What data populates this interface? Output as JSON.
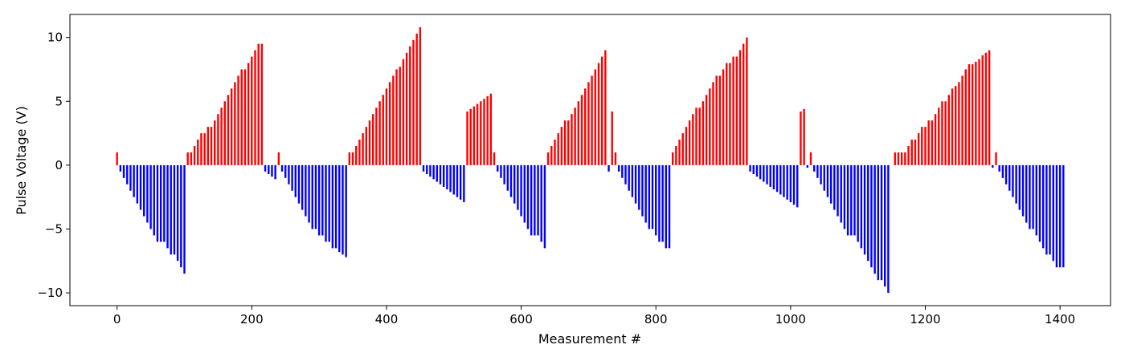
{
  "chart_data": {
    "type": "bar",
    "title": "",
    "xlabel": "Measurement #",
    "ylabel": "Pulse Voltage (V)",
    "xlim": [
      -70,
      1475
    ],
    "ylim": [
      -11.0,
      11.8
    ],
    "xticks": [
      0,
      200,
      400,
      600,
      800,
      1000,
      1200,
      1400
    ],
    "yticks": [
      -10,
      -5,
      0,
      5,
      10
    ],
    "xtick_labels": [
      "0",
      "200",
      "400",
      "600",
      "800",
      "1000",
      "1200",
      "1400"
    ],
    "ytick_labels": [
      "−10",
      "−5",
      "0",
      "5",
      "10"
    ],
    "grid": false,
    "legend": "none",
    "colors": {
      "positive": "#ff0000",
      "negative": "#0000ff",
      "axes": "#000000"
    },
    "series": [
      {
        "color": "#ff0000",
        "segments": [
          {
            "x_start": 0,
            "step": 5,
            "values": [
              1.0
            ]
          },
          {
            "x_start": 105,
            "step": 5,
            "values": [
              1.0,
              1.0,
              1.5,
              2.0,
              2.5,
              2.5,
              3.0,
              3.0,
              3.5,
              4.0,
              4.5,
              5.0,
              5.5,
              6.0,
              6.5,
              7.0,
              7.5,
              7.5,
              8.0,
              8.5,
              9.0,
              9.5,
              9.5
            ]
          },
          {
            "x_start": 240,
            "step": 5,
            "values": [
              1.0
            ]
          },
          {
            "x_start": 345,
            "step": 5,
            "values": [
              1.0,
              1.0,
              1.5,
              2.0,
              2.5,
              3.0,
              3.5,
              4.0,
              4.5,
              5.0,
              5.5,
              6.0,
              6.5,
              7.0,
              7.5,
              7.7,
              8.3,
              8.8,
              9.3,
              9.8,
              10.3,
              10.8
            ]
          },
          {
            "x_start": 520,
            "step": 5,
            "values": [
              4.2,
              4.4,
              4.6,
              4.8,
              5.0,
              5.2,
              5.4,
              5.6
            ]
          },
          {
            "x_start": 560,
            "step": 5,
            "values": [
              1.0
            ]
          },
          {
            "x_start": 640,
            "step": 5,
            "values": [
              1.0,
              1.5,
              2.0,
              2.5,
              3.0,
              3.5,
              3.5,
              4.0,
              4.5,
              5.0,
              5.5,
              6.0,
              6.5,
              7.0,
              7.5,
              8.0,
              8.5,
              9.0
            ]
          },
          {
            "x_start": 735,
            "step": 5,
            "values": [
              4.2,
              1.0
            ]
          },
          {
            "x_start": 825,
            "step": 5,
            "values": [
              1.0,
              1.5,
              2.0,
              2.5,
              3.0,
              3.5,
              4.0,
              4.5,
              4.5,
              5.0,
              5.5,
              6.0,
              6.5,
              7.0,
              7.0,
              7.5,
              8.0,
              8.0,
              8.5,
              8.5,
              9.0,
              9.5,
              10.0
            ]
          },
          {
            "x_start": 1015,
            "step": 5,
            "values": [
              4.2,
              4.4
            ]
          },
          {
            "x_start": 1030,
            "step": 5,
            "values": [
              1.0
            ]
          },
          {
            "x_start": 1155,
            "step": 5,
            "values": [
              1.0,
              1.0,
              1.0,
              1.0,
              1.5,
              2.0,
              2.0,
              2.5,
              3.0,
              3.0,
              3.5,
              3.5,
              4.0,
              4.5,
              5.0,
              5.0,
              5.5,
              6.0,
              6.2,
              6.5,
              7.0,
              7.5,
              7.9,
              7.9,
              8.1,
              8.3,
              8.6,
              8.8,
              9.0
            ]
          },
          {
            "x_start": 1305,
            "step": 5,
            "values": [
              1.0
            ]
          }
        ]
      },
      {
        "color": "#0000ff",
        "segments": [
          {
            "x_start": 5,
            "step": 5,
            "values": [
              -0.5,
              -1.0,
              -1.5,
              -2.0,
              -2.5,
              -3.0,
              -3.5,
              -4.0,
              -4.5,
              -5.0,
              -5.5,
              -6.0,
              -6.0,
              -6.0,
              -6.5,
              -7.0,
              -7.0,
              -7.5,
              -8.0,
              -8.5
            ]
          },
          {
            "x_start": 220,
            "step": 5,
            "values": [
              -0.5,
              -0.7,
              -0.9,
              -1.1
            ]
          },
          {
            "x_start": 245,
            "step": 5,
            "values": [
              -0.5,
              -1.0,
              -1.5,
              -2.0,
              -2.5,
              -3.0,
              -3.5,
              -4.0,
              -4.5,
              -5.0,
              -5.0,
              -5.5,
              -5.5,
              -6.0,
              -6.0,
              -6.5,
              -6.5,
              -6.8,
              -7.0,
              -7.2
            ]
          },
          {
            "x_start": 455,
            "step": 5,
            "values": [
              -0.5,
              -0.7,
              -0.9,
              -1.1,
              -1.3,
              -1.5,
              -1.7,
              -1.9,
              -2.1,
              -2.3,
              -2.5,
              -2.7,
              -2.9
            ]
          },
          {
            "x_start": 565,
            "step": 5,
            "values": [
              -0.5,
              -1.0,
              -1.5,
              -2.0,
              -2.5,
              -3.0,
              -3.5,
              -4.0,
              -4.5,
              -5.0,
              -5.5,
              -5.5,
              -5.5,
              -6.0,
              -6.5
            ]
          },
          {
            "x_start": 730,
            "step": 5,
            "values": [
              -0.5
            ]
          },
          {
            "x_start": 745,
            "step": 5,
            "values": [
              -0.5,
              -1.0,
              -1.5,
              -2.0,
              -2.5,
              -3.0,
              -3.5,
              -4.0,
              -4.5,
              -5.0,
              -5.0,
              -5.5,
              -6.0,
              -6.0,
              -6.5,
              -6.5
            ]
          },
          {
            "x_start": 940,
            "step": 5,
            "values": [
              -0.5,
              -0.7,
              -0.9,
              -1.1,
              -1.3,
              -1.5,
              -1.7,
              -1.9,
              -2.1,
              -2.3,
              -2.5,
              -2.7,
              -2.9,
              -3.1,
              -3.3
            ]
          },
          {
            "x_start": 1025,
            "step": 5,
            "values": [
              -0.2
            ]
          },
          {
            "x_start": 1035,
            "step": 5,
            "values": [
              -0.5,
              -1.0,
              -1.5,
              -2.0,
              -2.5,
              -3.0,
              -3.5,
              -4.0,
              -4.5,
              -5.0,
              -5.5,
              -5.5,
              -5.5,
              -6.0,
              -6.5,
              -7.0,
              -7.5,
              -8.0,
              -8.5,
              -9.0,
              -9.0,
              -9.5,
              -10.0
            ]
          },
          {
            "x_start": 1300,
            "step": 5,
            "values": [
              -0.2
            ]
          },
          {
            "x_start": 1310,
            "step": 5,
            "values": [
              -0.5,
              -1.0,
              -1.5,
              -2.0,
              -2.5,
              -3.0,
              -3.5,
              -4.0,
              -4.5,
              -5.0,
              -5.0,
              -5.5,
              -6.0,
              -6.5,
              -7.0,
              -7.0,
              -7.5,
              -8.0,
              -8.0,
              -8.0
            ]
          }
        ]
      }
    ]
  }
}
